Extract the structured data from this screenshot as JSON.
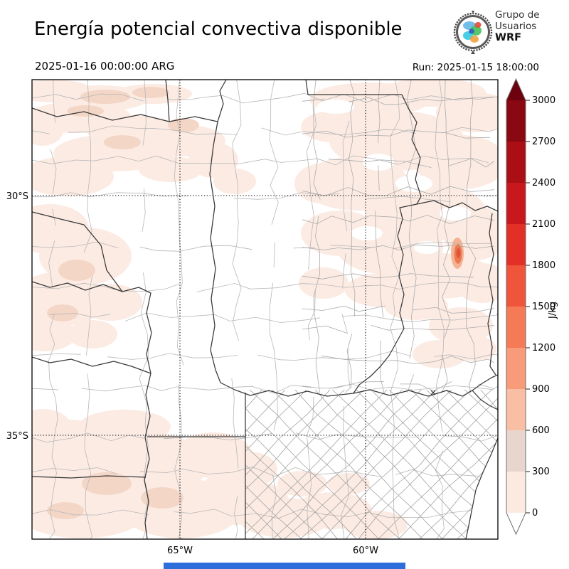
{
  "header": {
    "title": "Energía potencial convectiva disponible",
    "datetime": "2025-01-16 00:00:00 ARG",
    "run": "Run: 2025-01-15 18:00:00"
  },
  "logo": {
    "line1": "Grupo de",
    "line2": "Usuarios",
    "line3": "WRF"
  },
  "map": {
    "lat_labels": [
      "30°S",
      "35°S"
    ],
    "lon_labels": [
      "65°W",
      "60°W"
    ]
  },
  "colorbar": {
    "unit": "J/kg",
    "ticks": [
      "0",
      "300",
      "600",
      "900",
      "1200",
      "1500",
      "1800",
      "2100",
      "2400",
      "2700",
      "3000"
    ],
    "segment_colors": [
      "#fceae1",
      "#e8d6ce",
      "#f9bfa4",
      "#f89b78",
      "#f57a56",
      "#ef553b",
      "#e23027",
      "#c9181d",
      "#ab0f15",
      "#8a0811"
    ],
    "over_arrow_color": "#6d010e",
    "under_arrow_color": "#ffffff"
  },
  "field": {
    "light_shade": "#fcebe3",
    "medium_shade": "#f4d6c6",
    "hotspot_colors": [
      "#f4b292",
      "#ec7a50",
      "#e0553a"
    ]
  },
  "footer": {
    "bar_color": "#2e6edb"
  }
}
